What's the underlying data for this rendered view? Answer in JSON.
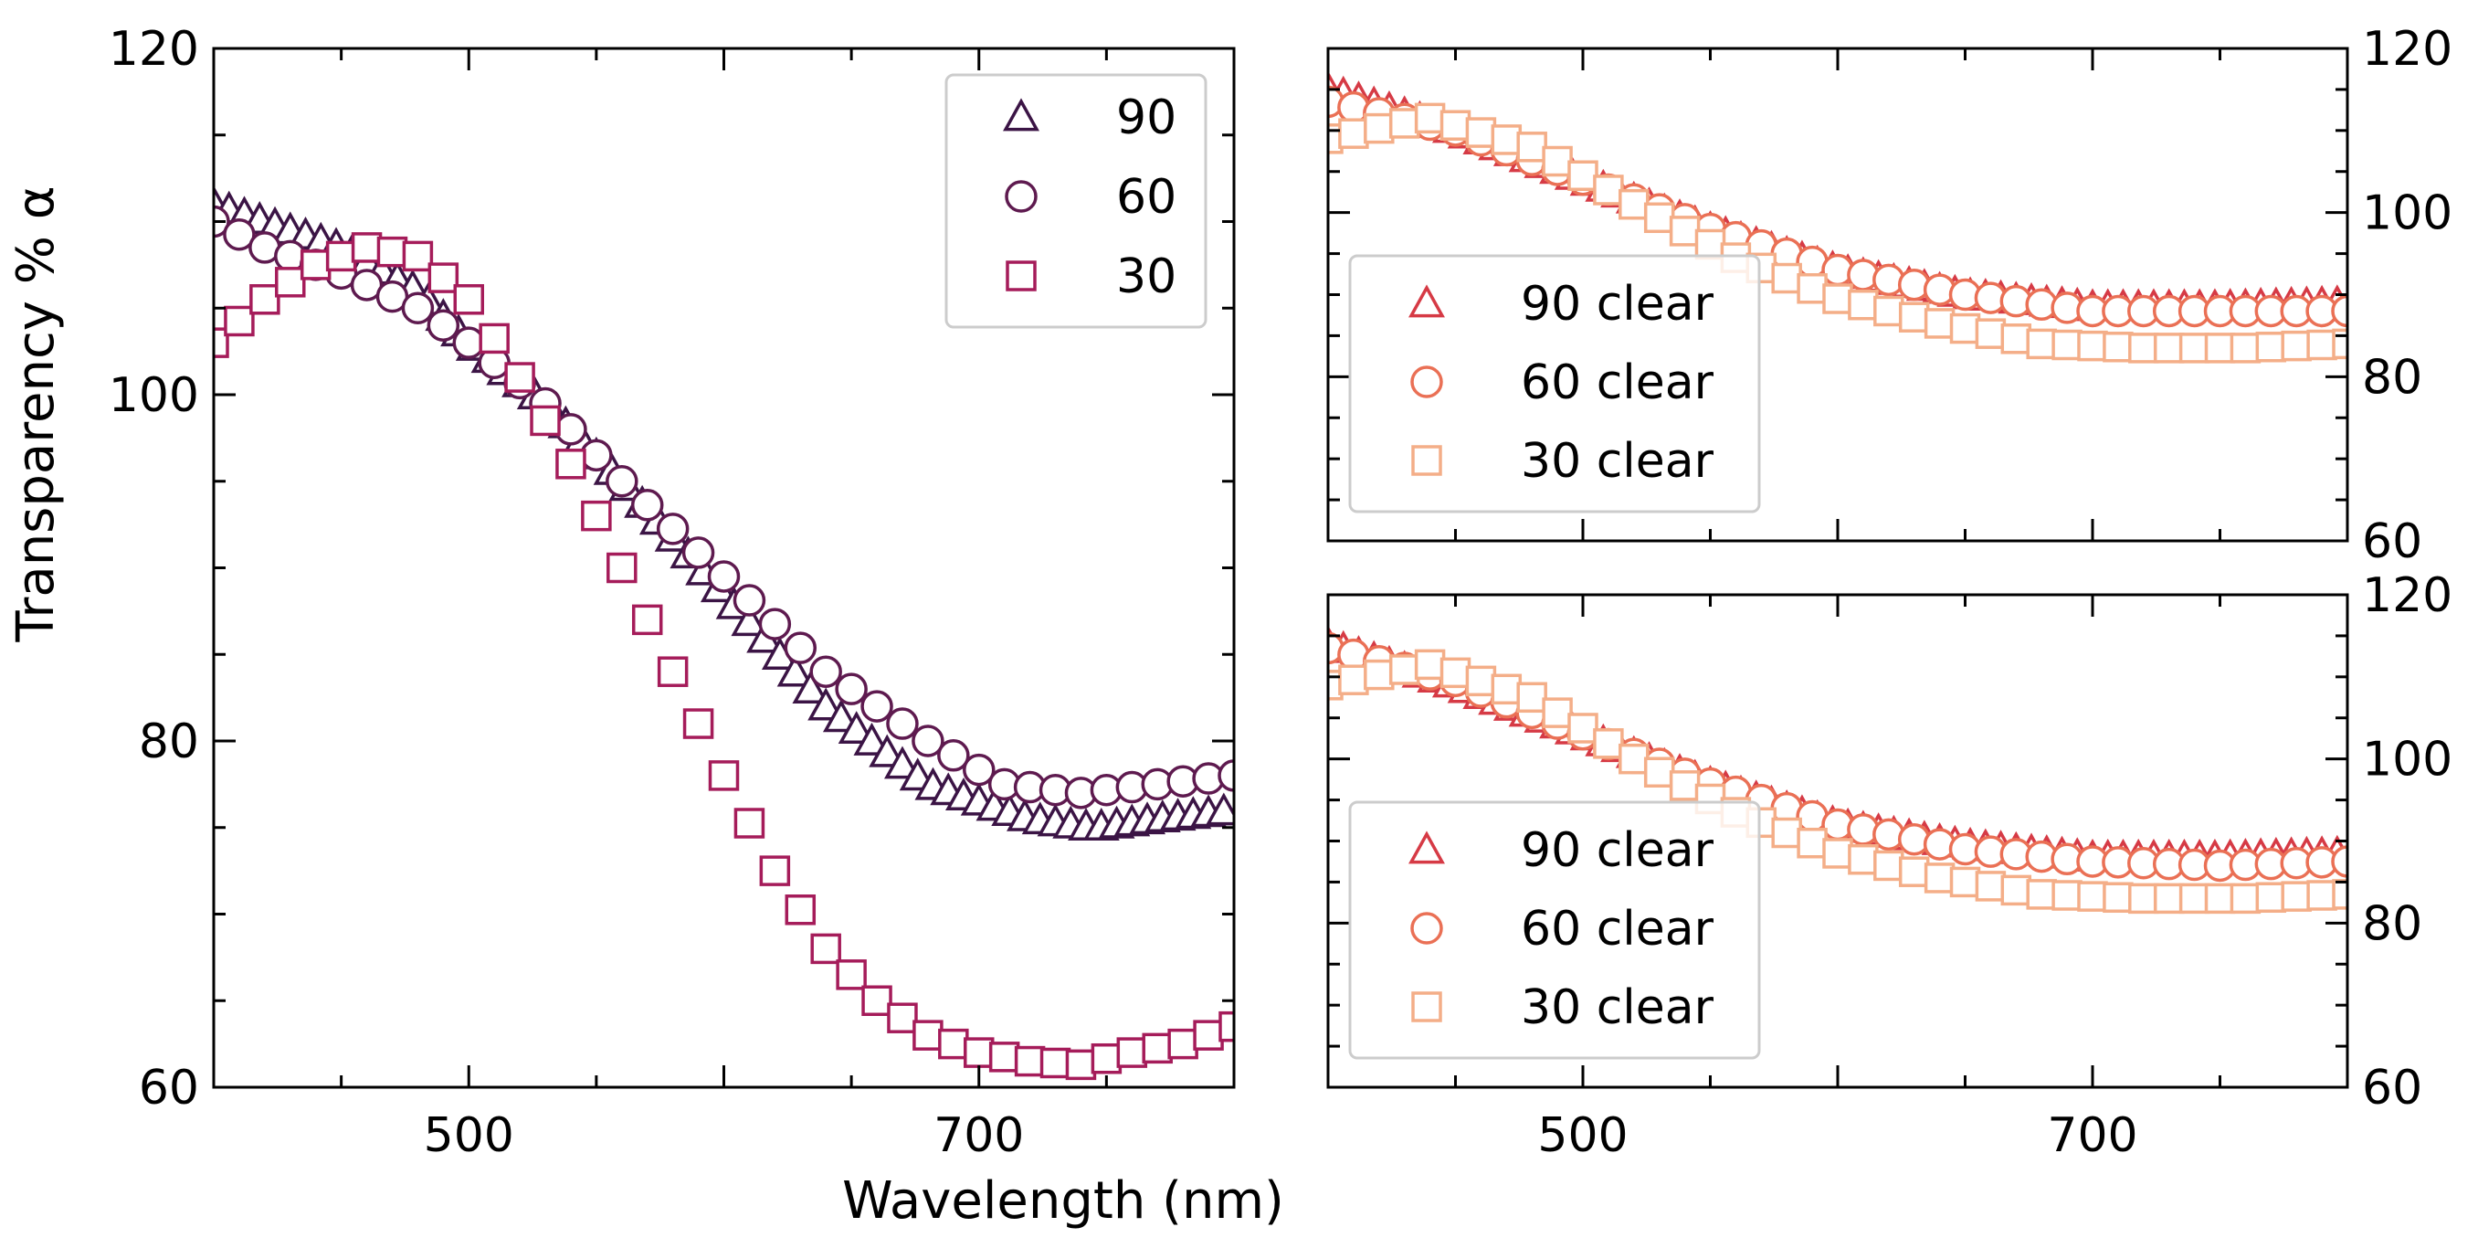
{
  "figure": {
    "xlabel": "Wavelength (nm)",
    "ylabel": "Transparency % α"
  },
  "chart_data": [
    {
      "id": "left",
      "type": "scatter",
      "xlim": [
        400,
        800
      ],
      "ylim": [
        60,
        120
      ],
      "xticks": [
        500,
        700
      ],
      "yticks": [
        60,
        80,
        100,
        120
      ],
      "ytick_side": "left",
      "show_xticklabels": true,
      "legend": {
        "placement": "top-right"
      },
      "series": [
        {
          "name": "90",
          "marker": "triangle",
          "color": "#3b1445",
          "x_start": 400,
          "x_step": 6,
          "y_points": [
            [
              400,
              111
            ],
            [
              420,
              110
            ],
            [
              450,
              108.5
            ],
            [
              480,
              106
            ],
            [
              500,
              103
            ],
            [
              530,
              99.5
            ],
            [
              560,
              95
            ],
            [
              600,
              88.5
            ],
            [
              640,
              82
            ],
            [
              680,
              77.5
            ],
            [
              720,
              75.5
            ],
            [
              745,
              75
            ],
            [
              770,
              75.5
            ],
            [
              800,
              76
            ]
          ]
        },
        {
          "name": "60",
          "marker": "circle",
          "color": "#5e1a4f",
          "x_start": 400,
          "x_step": 10,
          "y_points": [
            [
              400,
              110
            ],
            [
              420,
              108.5
            ],
            [
              450,
              107
            ],
            [
              480,
              105
            ],
            [
              500,
              103
            ],
            [
              530,
              99.5
            ],
            [
              560,
              95
            ],
            [
              600,
              89.5
            ],
            [
              640,
              84
            ],
            [
              680,
              80
            ],
            [
              710,
              77.5
            ],
            [
              740,
              77
            ],
            [
              770,
              77.5
            ],
            [
              800,
              78
            ]
          ]
        },
        {
          "name": "30",
          "marker": "square",
          "color": "#a51c5a",
          "x_start": 400,
          "x_step": 10,
          "y_points": [
            [
              400,
              103
            ],
            [
              420,
              105.5
            ],
            [
              440,
              107.5
            ],
            [
              460,
              108.5
            ],
            [
              480,
              108
            ],
            [
              500,
              105.5
            ],
            [
              520,
              101
            ],
            [
              540,
              96
            ],
            [
              560,
              90
            ],
            [
              580,
              84
            ],
            [
              600,
              78
            ],
            [
              620,
              72.5
            ],
            [
              640,
              68
            ],
            [
              660,
              65
            ],
            [
              680,
              63
            ],
            [
              700,
              62
            ],
            [
              720,
              61.5
            ],
            [
              740,
              61.3
            ],
            [
              760,
              62
            ],
            [
              780,
              62.5
            ],
            [
              800,
              63.5
            ]
          ]
        }
      ]
    },
    {
      "id": "top-right",
      "type": "scatter",
      "xlim": [
        400,
        800
      ],
      "ylim": [
        60,
        120
      ],
      "xticks": [
        500,
        700
      ],
      "yticks": [
        60,
        80,
        100,
        120
      ],
      "ytick_side": "right",
      "show_xticklabels": false,
      "legend": {
        "placement": "bottom-left"
      },
      "series": [
        {
          "name": "90 clear",
          "marker": "triangle",
          "color": "#d63a45",
          "x_start": 400,
          "x_step": 6,
          "y_points": [
            [
              400,
              115
            ],
            [
              450,
              110
            ],
            [
              500,
              104
            ],
            [
              550,
              98
            ],
            [
              600,
              93
            ],
            [
              650,
              90
            ],
            [
              700,
              88.5
            ],
            [
              750,
              88.5
            ],
            [
              800,
              89
            ]
          ]
        },
        {
          "name": "60 clear",
          "marker": "circle",
          "color": "#ea7055",
          "x_start": 400,
          "x_step": 10,
          "y_points": [
            [
              400,
              113.5
            ],
            [
              450,
              110
            ],
            [
              500,
              104
            ],
            [
              550,
              98
            ],
            [
              600,
              93
            ],
            [
              650,
              90
            ],
            [
              700,
              88
            ],
            [
              750,
              88
            ],
            [
              800,
              88
            ]
          ]
        },
        {
          "name": "30 clear",
          "marker": "square",
          "color": "#f4ae88",
          "x_start": 400,
          "x_step": 10,
          "y_points": [
            [
              400,
              109
            ],
            [
              440,
              111.5
            ],
            [
              480,
              108
            ],
            [
              520,
              101
            ],
            [
              560,
              94.5
            ],
            [
              600,
              89.5
            ],
            [
              640,
              86.5
            ],
            [
              680,
              84
            ],
            [
              720,
              83.5
            ],
            [
              760,
              83.5
            ],
            [
              800,
              84
            ]
          ]
        }
      ]
    },
    {
      "id": "bottom-right",
      "type": "scatter",
      "xlim": [
        400,
        800
      ],
      "ylim": [
        60,
        120
      ],
      "xticks": [
        500,
        700
      ],
      "yticks": [
        60,
        80,
        100,
        120
      ],
      "ytick_side": "right",
      "show_xticklabels": true,
      "legend": {
        "placement": "bottom-left"
      },
      "series": [
        {
          "name": "90 clear",
          "marker": "triangle",
          "color": "#d63a45",
          "x_start": 400,
          "x_step": 6,
          "y_points": [
            [
              400,
              114
            ],
            [
              450,
              109
            ],
            [
              500,
              103
            ],
            [
              550,
              97
            ],
            [
              600,
              92
            ],
            [
              650,
              89.5
            ],
            [
              700,
              88
            ],
            [
              750,
              88
            ],
            [
              800,
              88.5
            ]
          ]
        },
        {
          "name": "60 clear",
          "marker": "circle",
          "color": "#ea7055",
          "x_start": 400,
          "x_step": 10,
          "y_points": [
            [
              400,
              113.5
            ],
            [
              450,
              109.5
            ],
            [
              500,
              103
            ],
            [
              550,
              97
            ],
            [
              600,
              92
            ],
            [
              650,
              89
            ],
            [
              700,
              87.5
            ],
            [
              750,
              87
            ],
            [
              800,
              87.5
            ]
          ]
        },
        {
          "name": "30 clear",
          "marker": "square",
          "color": "#f4ae88",
          "x_start": 400,
          "x_step": 10,
          "y_points": [
            [
              400,
              109
            ],
            [
              440,
              111.5
            ],
            [
              480,
              107.5
            ],
            [
              520,
              100
            ],
            [
              560,
              93.5
            ],
            [
              600,
              88.5
            ],
            [
              640,
              85.5
            ],
            [
              680,
              83.5
            ],
            [
              720,
              83
            ],
            [
              760,
              83
            ],
            [
              800,
              83.5
            ]
          ]
        }
      ]
    }
  ]
}
